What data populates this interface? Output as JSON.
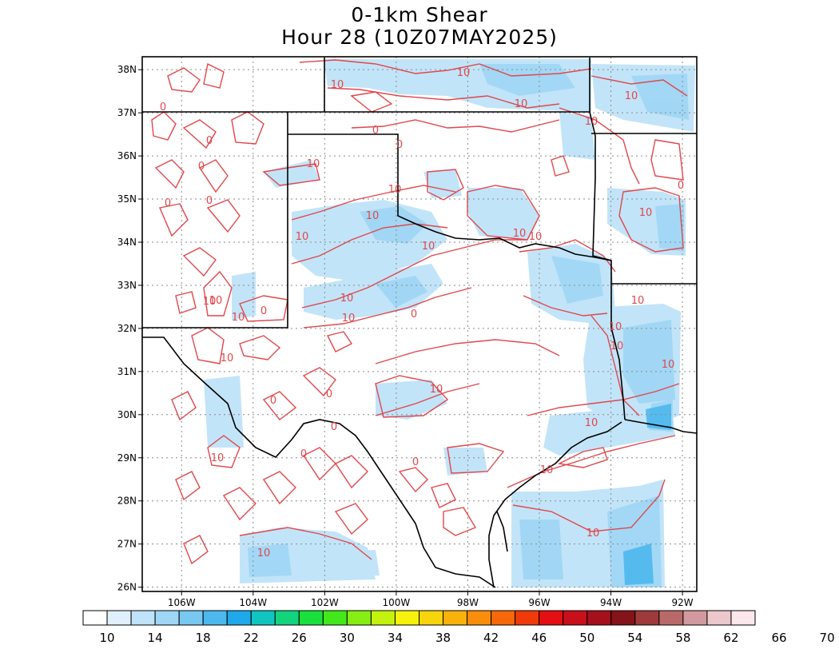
{
  "title": {
    "line1": "0-1km Shear",
    "line2": "Hour 28 (10Z07MAY2025)"
  },
  "map": {
    "lon_range": [
      -107.1,
      -91.6
    ],
    "lat_range": [
      25.9,
      38.3
    ],
    "lat_ticks": [
      "26N",
      "27N",
      "28N",
      "29N",
      "30N",
      "31N",
      "32N",
      "33N",
      "34N",
      "35N",
      "36N",
      "37N",
      "38N"
    ],
    "lon_ticks": [
      "106W",
      "104W",
      "102W",
      "100W",
      "98W",
      "96W",
      "94W",
      "92W"
    ],
    "contour_label": "10",
    "contour_zero_label": "0",
    "contour_color": "#e0474c",
    "border_color": "#000000",
    "gridline_style": "dotted"
  },
  "colorbar": {
    "labels": [
      "10",
      "14",
      "18",
      "22",
      "26",
      "30",
      "34",
      "38",
      "42",
      "46",
      "50",
      "54",
      "58",
      "62",
      "66",
      "70"
    ],
    "colors": [
      "#ffffff",
      "#dff0fb",
      "#bfe3f8",
      "#9ed6f5",
      "#78c8f2",
      "#4cb8ee",
      "#1fa9ea",
      "#10c4c0",
      "#12d37e",
      "#19e03c",
      "#42e81a",
      "#86ee14",
      "#c4f20f",
      "#f6f20c",
      "#f8d40b",
      "#f8b20a",
      "#f88e09",
      "#f66809",
      "#f03a0a",
      "#e40f12",
      "#c8101b",
      "#a4111d",
      "#84141a",
      "#9e3a3a",
      "#b86a6a",
      "#d29a9e",
      "#ecc8cc",
      "#fce8ec"
    ]
  }
}
